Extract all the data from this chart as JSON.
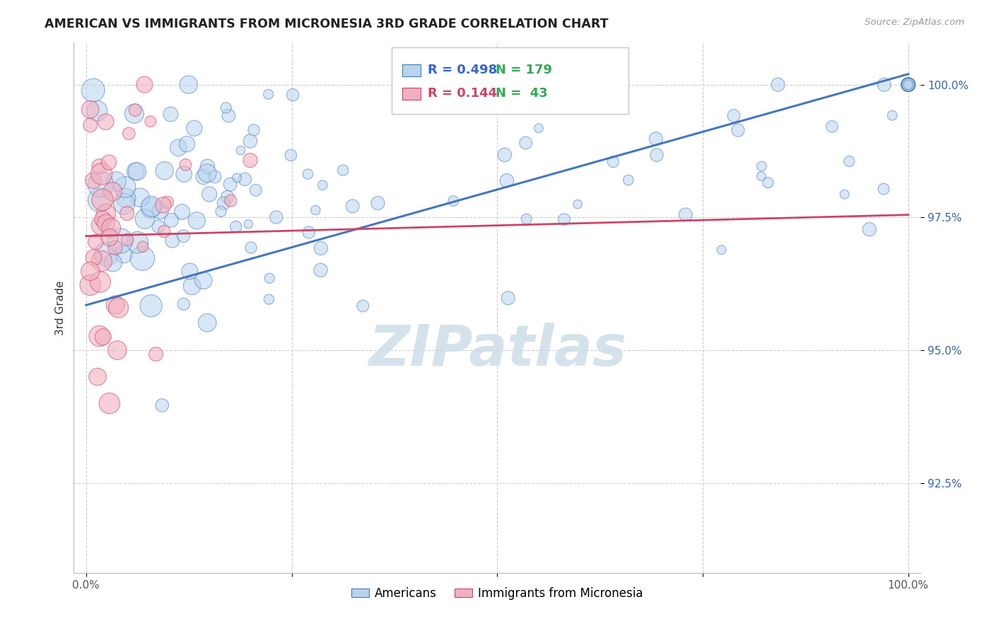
{
  "title": "AMERICAN VS IMMIGRANTS FROM MICRONESIA 3RD GRADE CORRELATION CHART",
  "source": "Source: ZipAtlas.com",
  "ylabel": "3rd Grade",
  "y_tick_labels": [
    "92.5%",
    "95.0%",
    "97.5%",
    "100.0%"
  ],
  "y_tick_values": [
    0.925,
    0.95,
    0.975,
    1.0
  ],
  "ylim": [
    0.908,
    1.008
  ],
  "xlim": [
    -0.015,
    1.015
  ],
  "legend_blue_r": "R = 0.498",
  "legend_blue_n": "N = 179",
  "legend_pink_r": "R = 0.144",
  "legend_pink_n": "N =  43",
  "blue_fill": "#b8d4ed",
  "blue_edge": "#4477bb",
  "pink_fill": "#f0b0c0",
  "pink_edge": "#cc4466",
  "blue_r_color": "#3366cc",
  "blue_n_color": "#33aa55",
  "pink_r_color": "#cc4466",
  "pink_n_color": "#33aa55",
  "watermark": "ZIPatlas",
  "watermark_color": "#ccdde8",
  "blue_trend_x": [
    0.0,
    1.0
  ],
  "blue_trend_y": [
    0.9585,
    1.002
  ],
  "pink_trend_x": [
    0.0,
    1.0
  ],
  "pink_trend_y": [
    0.9715,
    0.9755
  ],
  "label_americans": "Americans",
  "label_micronesia": "Immigrants from Micronesia"
}
